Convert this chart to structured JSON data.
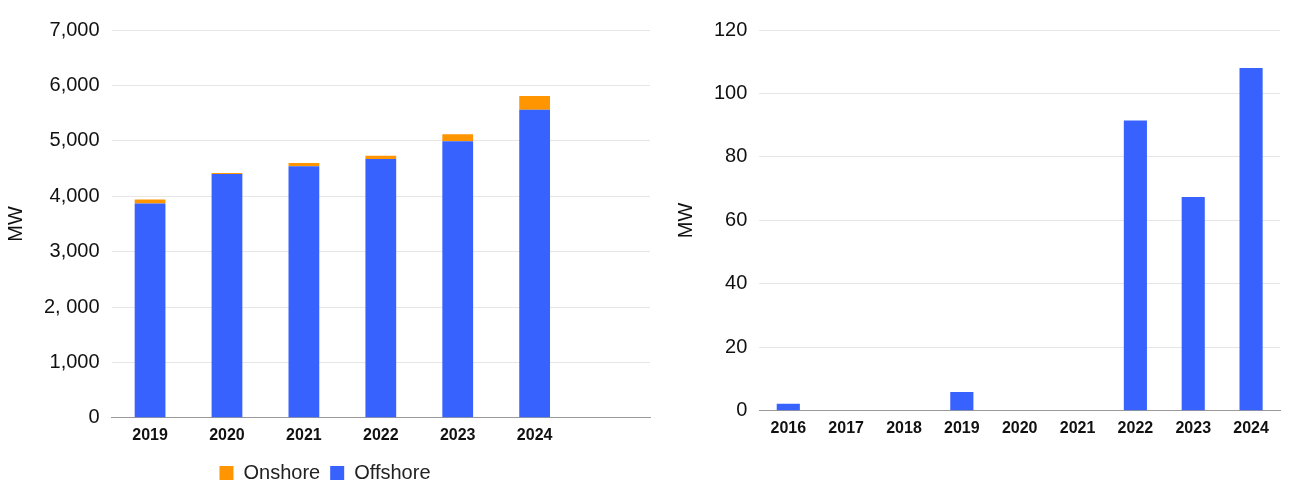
{
  "chart_data": [
    {
      "type": "bar",
      "stacked": true,
      "ylabel": "MW",
      "categories": [
        "2019",
        "2020",
        "2021",
        "2022",
        "2023",
        "2024",
        null
      ],
      "series": [
        {
          "name": "Offshore",
          "color": "#3862fe",
          "values": [
            3870,
            4400,
            4540,
            4670,
            4990,
            5560,
            null
          ]
        },
        {
          "name": "Onshore",
          "color": "#ff9500",
          "values": [
            70,
            20,
            60,
            60,
            130,
            250,
            null
          ]
        }
      ],
      "ylim": [
        0,
        7000
      ],
      "yticks": [
        0,
        {
          "value": 1000,
          "label": "1,000"
        },
        {
          "value": 2000,
          "label": "2, 000"
        },
        {
          "value": 3000,
          "label": "3,000"
        },
        {
          "value": 4000,
          "label": "4,000"
        },
        {
          "value": 5000,
          "label": "5,000"
        },
        {
          "value": 6000,
          "label": "6,000"
        },
        {
          "value": 7000,
          "label": "7,000"
        }
      ],
      "grid": "y",
      "legend": "bottom"
    },
    {
      "type": "bar",
      "ylabel": "MW",
      "categories": [
        "2016",
        "2017",
        "2018",
        "2019",
        "2020",
        "2021",
        "2022",
        "2023",
        "2024"
      ],
      "series": [
        {
          "color": "#3862fe",
          "values": [
            2.2,
            0,
            0,
            5.9,
            0,
            0,
            91.5,
            67.4,
            108
          ]
        }
      ],
      "ylim": [
        0,
        120
      ],
      "yticks": [
        0,
        20,
        40,
        60,
        80,
        100,
        120
      ],
      "grid": "y"
    }
  ]
}
